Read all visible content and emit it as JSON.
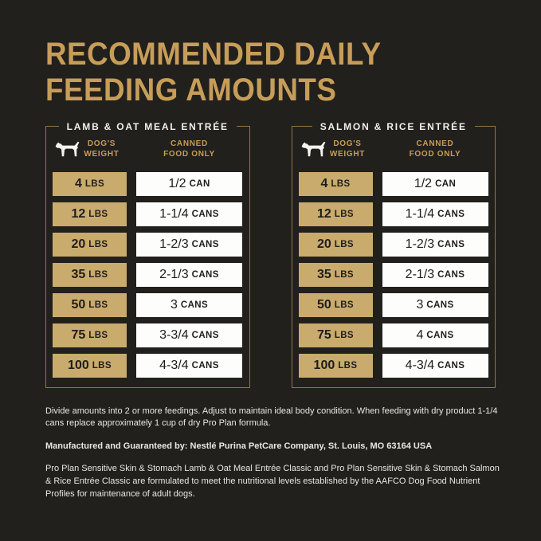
{
  "header": {
    "title_line1": "RECOMMENDED DAILY",
    "title_line2": "FEEDING AMOUNTS"
  },
  "columns": {
    "weight_line1": "DOG'S",
    "weight_line2": "WEIGHT",
    "canned_line1": "CANNED",
    "canned_line2": "FOOD ONLY"
  },
  "tables": [
    {
      "title": "LAMB  & OAT MEAL ENTRÉE",
      "rows": [
        {
          "weight": "4 LBS",
          "amount": "1/2 CAN"
        },
        {
          "weight": "12 LBS",
          "amount": "1-1/4 CANS"
        },
        {
          "weight": "20 LBS",
          "amount": "1-2/3 CANS"
        },
        {
          "weight": "35 LBS",
          "amount": "2-1/3 CANS"
        },
        {
          "weight": "50 LBS",
          "amount": "3 CANS"
        },
        {
          "weight": "75 LBS",
          "amount": "3-3/4 CANS"
        },
        {
          "weight": "100 LBS",
          "amount": "4-3/4 CANS"
        }
      ]
    },
    {
      "title": "SALMON & RICE ENTRÉE",
      "rows": [
        {
          "weight": "4 LBS",
          "amount": "1/2 CAN"
        },
        {
          "weight": "12 LBS",
          "amount": "1-1/4 CANS"
        },
        {
          "weight": "20 LBS",
          "amount": "1-2/3 CANS"
        },
        {
          "weight": "35 LBS",
          "amount": "2-1/3 CANS"
        },
        {
          "weight": "50 LBS",
          "amount": "3 CANS"
        },
        {
          "weight": "75 LBS",
          "amount": "4 CANS"
        },
        {
          "weight": "100 LBS",
          "amount": "4-3/4 CANS"
        }
      ]
    }
  ],
  "footer": {
    "note": "Divide amounts into 2 or more feedings. Adjust to maintain ideal body condition. When feeding with dry product 1-1/4 cans replace approximately 1 cup of dry Pro Plan formula.",
    "manufactured": "Manufactured and Guaranteed by: Nestlé Purina PetCare Company, St. Louis, MO 63164 USA",
    "aafco": "Pro Plan Sensitive Skin & Stomach Lamb & Oat Meal Entrée Classic and Pro Plan Sensitive Skin & Stomach Salmon & Rice Entrée Classic are formulated to meet the nutritional levels established by the AAFCO Dog Food Nutrient Profiles for maintenance of adult dogs."
  },
  "colors": {
    "background": "#21201d",
    "gold_text": "#c79d58",
    "table_border": "#8d7747",
    "weight_cell_bg": "#c9ab6e",
    "amount_cell_bg": "#fdfdfc",
    "cell_text": "#1e1d1a",
    "light_text": "#e9e7e2"
  }
}
